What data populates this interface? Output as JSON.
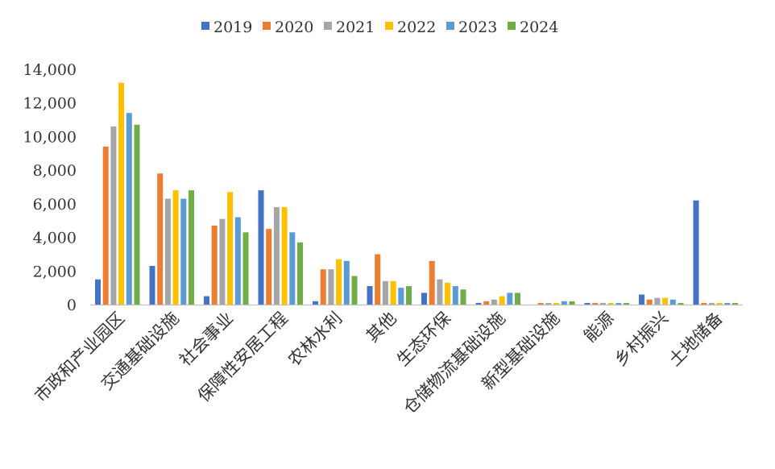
{
  "chart_data": {
    "type": "bar",
    "categories": [
      "市政和产业园区",
      "交通基础设施",
      "社会事业",
      "保障性安居工程",
      "农林水利",
      "其他",
      "生态环保",
      "仓储物流基础设施",
      "新型基础设施",
      "能源",
      "乡村振兴",
      "土地储备"
    ],
    "series": [
      {
        "name": "2019",
        "color": "#4472c4",
        "values": [
          1500,
          2300,
          500,
          6800,
          200,
          1100,
          700,
          100,
          0,
          100,
          600,
          6200
        ]
      },
      {
        "name": "2020",
        "color": "#ed7d31",
        "values": [
          9400,
          7800,
          4700,
          4500,
          2100,
          3000,
          2600,
          200,
          100,
          100,
          300,
          100
        ]
      },
      {
        "name": "2021",
        "color": "#a5a5a5",
        "values": [
          10600,
          6300,
          5100,
          5800,
          2100,
          1400,
          1500,
          300,
          100,
          100,
          400,
          100
        ]
      },
      {
        "name": "2022",
        "color": "#ffc000",
        "values": [
          13200,
          6800,
          6700,
          5800,
          2700,
          1400,
          1300,
          500,
          100,
          100,
          400,
          100
        ]
      },
      {
        "name": "2023",
        "color": "#5b9bd5",
        "values": [
          11400,
          6300,
          5200,
          4300,
          2600,
          1000,
          1100,
          700,
          200,
          100,
          300,
          100
        ]
      },
      {
        "name": "2024",
        "color": "#70ad47",
        "values": [
          10700,
          6800,
          4300,
          3700,
          1700,
          1100,
          900,
          700,
          200,
          100,
          100,
          100
        ]
      }
    ],
    "yticks": [
      "0",
      "2,000",
      "4,000",
      "6,000",
      "8,000",
      "10,000",
      "12,000",
      "14,000"
    ],
    "ylim": [
      0,
      14000
    ],
    "legend_position": "top",
    "grid": false,
    "title": "",
    "xlabel": "",
    "ylabel": ""
  }
}
